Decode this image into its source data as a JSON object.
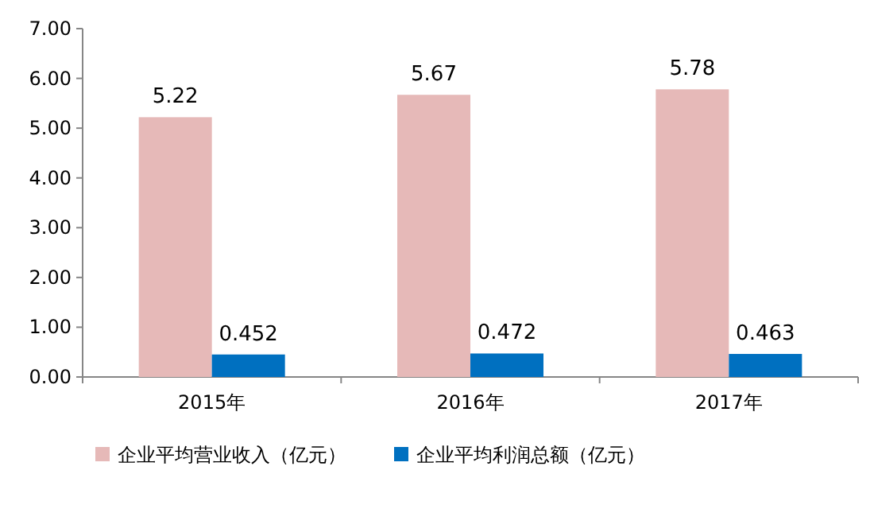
{
  "chart_data": {
    "type": "bar",
    "categories": [
      "2015年",
      "2016年",
      "2017年"
    ],
    "series": [
      {
        "name": "企业平均营业收入（亿元）",
        "color": "#e6b9b8",
        "values": [
          5.22,
          5.67,
          5.78
        ]
      },
      {
        "name": "企业平均利润总额（亿元）",
        "color": "#0070c0",
        "values": [
          0.452,
          0.472,
          0.463
        ]
      }
    ],
    "ylim": [
      0,
      7
    ],
    "yticks": [
      {
        "value": 0,
        "label": "0.00"
      },
      {
        "value": 1,
        "label": "1.00"
      },
      {
        "value": 2,
        "label": "2.00"
      },
      {
        "value": 3,
        "label": "3.00"
      },
      {
        "value": 4,
        "label": "4.00"
      },
      {
        "value": 5,
        "label": "5.00"
      },
      {
        "value": 6,
        "label": "6.00"
      },
      {
        "value": 7,
        "label": "7.00"
      }
    ],
    "data_labels": true,
    "legend": "bottom"
  }
}
